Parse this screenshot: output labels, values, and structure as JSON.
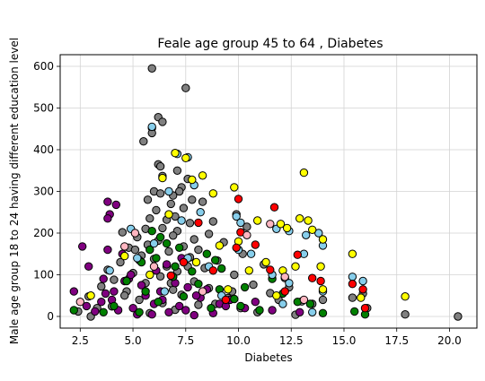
{
  "chart_data": {
    "type": "scatter",
    "title": "Feale age group 45 to 64 , Diabetes",
    "xlabel": "Diabetes",
    "ylabel": "Male age group 18 to 24 having different education level",
    "xlim": [
      1.55,
      21.3
    ],
    "ylim": [
      -28,
      628
    ],
    "xticks": [
      2.5,
      5.0,
      7.5,
      10.0,
      12.5,
      15.0,
      17.5,
      20.0
    ],
    "xtick_labels": [
      "2.5",
      "5.0",
      "7.5",
      "10.0",
      "12.5",
      "15.0",
      "17.5",
      "20.0"
    ],
    "yticks": [
      0,
      100,
      200,
      300,
      400,
      500,
      600
    ],
    "ytick_labels": [
      "0",
      "100",
      "200",
      "300",
      "400",
      "500",
      "600"
    ],
    "grid": true,
    "marker_edge_color": "#000000",
    "series": [
      {
        "color": "#808080",
        "points": [
          [
            5.9,
            595
          ],
          [
            7.5,
            548
          ],
          [
            6.2,
            478
          ],
          [
            6.4,
            467
          ],
          [
            5.9,
            452
          ],
          [
            5.9,
            440
          ],
          [
            5.5,
            420
          ],
          [
            6.2,
            365
          ],
          [
            6.3,
            360
          ],
          [
            7.1,
            350
          ],
          [
            6.4,
            337
          ],
          [
            7.6,
            330
          ],
          [
            7.3,
            310
          ],
          [
            7.2,
            300
          ],
          [
            6.0,
            300
          ],
          [
            6.3,
            295
          ],
          [
            6.9,
            290
          ],
          [
            7.8,
            280
          ],
          [
            5.7,
            280
          ],
          [
            8.3,
            275
          ],
          [
            6.8,
            270
          ],
          [
            7.4,
            260
          ],
          [
            6.1,
            255
          ],
          [
            9.9,
            245
          ],
          [
            7.0,
            240
          ],
          [
            5.8,
            235
          ],
          [
            6.6,
            232
          ],
          [
            8.8,
            228
          ],
          [
            7.7,
            224
          ],
          [
            10.4,
            215
          ],
          [
            6.4,
            212
          ],
          [
            5.6,
            210
          ],
          [
            7.1,
            205
          ],
          [
            4.5,
            202
          ],
          [
            8.6,
            198
          ],
          [
            6.9,
            194
          ],
          [
            5.2,
            190
          ],
          [
            7.9,
            185
          ],
          [
            6.2,
            182
          ],
          [
            9.3,
            178
          ],
          [
            5.7,
            172
          ],
          [
            7.4,
            168
          ],
          [
            4.8,
            165
          ],
          [
            8.1,
            160
          ],
          [
            6.7,
            156
          ],
          [
            10.2,
            150
          ],
          [
            5.4,
            146
          ],
          [
            7.7,
            142
          ],
          [
            6.0,
            138
          ],
          [
            9.0,
            134
          ],
          [
            4.4,
            130
          ],
          [
            11.2,
            125
          ],
          [
            6.6,
            120
          ],
          [
            8.4,
            116
          ],
          [
            3.8,
            112
          ],
          [
            7.1,
            108
          ],
          [
            5.0,
            104
          ],
          [
            9.8,
            100
          ],
          [
            6.3,
            96
          ],
          [
            12.2,
            92
          ],
          [
            4.1,
            88
          ],
          [
            7.9,
            84
          ],
          [
            5.6,
            80
          ],
          [
            10.7,
            76
          ],
          [
            3.5,
            72
          ],
          [
            8.6,
            68
          ],
          [
            6.9,
            64
          ],
          [
            4.7,
            60
          ],
          [
            11.5,
            56
          ],
          [
            7.3,
            52
          ],
          [
            2.9,
            48
          ],
          [
            9.5,
            44
          ],
          [
            5.3,
            40
          ],
          [
            13.0,
            36
          ],
          [
            6.4,
            32
          ],
          [
            8.1,
            28
          ],
          [
            4.0,
            24
          ],
          [
            10.1,
            20
          ],
          [
            7.0,
            16
          ],
          [
            2.4,
            12
          ],
          [
            5.8,
            8
          ],
          [
            12.7,
            4
          ],
          [
            15.4,
            45
          ],
          [
            15.9,
            55
          ],
          [
            14.0,
            40
          ],
          [
            16.1,
            20
          ],
          [
            17.9,
            5
          ],
          [
            20.4,
            0
          ],
          [
            13.5,
            30
          ],
          [
            11.9,
            40
          ],
          [
            3.3,
            20
          ],
          [
            4.6,
            50
          ],
          [
            6.8,
            80
          ],
          [
            8.9,
            30
          ],
          [
            9.7,
            60
          ],
          [
            10.9,
            10
          ],
          [
            12.4,
            70
          ],
          [
            3.0,
            0
          ],
          [
            7.6,
            120
          ],
          [
            5.1,
            160
          ]
        ]
      },
      {
        "color": "#800080",
        "points": [
          [
            3.8,
            275
          ],
          [
            4.2,
            268
          ],
          [
            3.9,
            245
          ],
          [
            3.8,
            235
          ],
          [
            2.6,
            168
          ],
          [
            3.8,
            160
          ],
          [
            4.5,
            150
          ],
          [
            2.9,
            120
          ],
          [
            5.3,
            135
          ],
          [
            6.1,
            110
          ],
          [
            4.8,
            90
          ],
          [
            6.9,
            95
          ],
          [
            7.6,
            70
          ],
          [
            4.1,
            60
          ],
          [
            2.2,
            60
          ],
          [
            5.6,
            50
          ],
          [
            8.2,
            45
          ],
          [
            6.4,
            40
          ],
          [
            3.5,
            35
          ],
          [
            9.1,
            30
          ],
          [
            7.2,
            25
          ],
          [
            5.0,
            20
          ],
          [
            4.3,
            15
          ],
          [
            6.7,
            10
          ],
          [
            8.8,
            8
          ],
          [
            5.9,
            5
          ],
          [
            7.9,
            3
          ],
          [
            3.2,
            12
          ],
          [
            10.3,
            20
          ],
          [
            11.6,
            15
          ],
          [
            12.9,
            10
          ],
          [
            9.6,
            40
          ],
          [
            6.3,
            60
          ],
          [
            7.0,
            80
          ],
          [
            8.5,
            65
          ],
          [
            5.4,
            75
          ],
          [
            4.6,
            85
          ],
          [
            3.7,
            55
          ],
          [
            6.0,
            30
          ],
          [
            7.5,
            15
          ],
          [
            8.0,
            50
          ],
          [
            9.4,
            25
          ],
          [
            10.8,
            35
          ],
          [
            5.2,
            5
          ],
          [
            4.9,
            100
          ],
          [
            6.6,
            125
          ],
          [
            7.3,
            140
          ],
          [
            2.8,
            25
          ],
          [
            3.6,
            90
          ],
          [
            4.0,
            40
          ]
        ]
      },
      {
        "color": "#008000",
        "points": [
          [
            5.9,
            205
          ],
          [
            6.3,
            190
          ],
          [
            6.6,
            175
          ],
          [
            7.2,
            165
          ],
          [
            8.5,
            150
          ],
          [
            6.1,
            140
          ],
          [
            5.4,
            130
          ],
          [
            9.2,
            115
          ],
          [
            7.8,
            108
          ],
          [
            6.9,
            95
          ],
          [
            11.6,
            90
          ],
          [
            4.7,
            85
          ],
          [
            8.1,
            78
          ],
          [
            10.3,
            70
          ],
          [
            5.6,
            60
          ],
          [
            12.1,
            55
          ],
          [
            7.4,
            48
          ],
          [
            9.8,
            42
          ],
          [
            6.2,
            35
          ],
          [
            13.4,
            30
          ],
          [
            4.1,
            25
          ],
          [
            8.7,
            20
          ],
          [
            11.0,
            15
          ],
          [
            5.3,
            10
          ],
          [
            14.0,
            8
          ],
          [
            2.2,
            15
          ],
          [
            3.6,
            10
          ],
          [
            15.5,
            12
          ],
          [
            16.0,
            5
          ],
          [
            10.1,
            25
          ],
          [
            12.8,
            35
          ],
          [
            9.1,
            65
          ],
          [
            7.0,
            120
          ],
          [
            8.9,
            135
          ],
          [
            5.8,
            160
          ]
        ]
      },
      {
        "color": "#87ceeb",
        "points": [
          [
            5.9,
            455
          ],
          [
            7.1,
            390
          ],
          [
            7.6,
            382
          ],
          [
            7.9,
            315
          ],
          [
            6.7,
            300
          ],
          [
            9.9,
            240
          ],
          [
            8.2,
            250
          ],
          [
            10.1,
            225
          ],
          [
            7.3,
            230
          ],
          [
            11.8,
            210
          ],
          [
            12.4,
            205
          ],
          [
            13.2,
            195
          ],
          [
            13.8,
            200
          ],
          [
            14.0,
            170
          ],
          [
            6.0,
            175
          ],
          [
            7.6,
            140
          ],
          [
            10.0,
            160
          ],
          [
            13.1,
            150
          ],
          [
            8.6,
            120
          ],
          [
            11.6,
            100
          ],
          [
            12.4,
            80
          ],
          [
            14.0,
            60
          ],
          [
            15.4,
            95
          ],
          [
            15.9,
            85
          ],
          [
            4.9,
            210
          ],
          [
            5.2,
            140
          ],
          [
            6.5,
            60
          ],
          [
            9.2,
            50
          ],
          [
            10.6,
            150
          ],
          [
            12.1,
            30
          ],
          [
            13.5,
            10
          ],
          [
            3.9,
            110
          ]
        ]
      },
      {
        "color": "#ffff00",
        "points": [
          [
            13.1,
            345
          ],
          [
            7.0,
            392
          ],
          [
            7.5,
            380
          ],
          [
            8.3,
            338
          ],
          [
            6.4,
            332
          ],
          [
            7.8,
            328
          ],
          [
            8.8,
            295
          ],
          [
            9.8,
            310
          ],
          [
            6.7,
            245
          ],
          [
            10.9,
            230
          ],
          [
            12.0,
            222
          ],
          [
            12.3,
            212
          ],
          [
            12.9,
            235
          ],
          [
            13.3,
            230
          ],
          [
            13.5,
            208
          ],
          [
            14.0,
            185
          ],
          [
            13.9,
            120
          ],
          [
            11.3,
            130
          ],
          [
            10.5,
            110
          ],
          [
            12.7,
            120
          ],
          [
            14.0,
            65
          ],
          [
            15.4,
            150
          ],
          [
            15.8,
            45
          ],
          [
            17.9,
            48
          ],
          [
            3.0,
            50
          ],
          [
            4.6,
            145
          ],
          [
            5.8,
            100
          ],
          [
            9.1,
            170
          ],
          [
            10.0,
            180
          ],
          [
            11.8,
            50
          ],
          [
            12.1,
            110
          ],
          [
            9.5,
            65
          ],
          [
            8.0,
            130
          ]
        ]
      },
      {
        "color": "#ff0000",
        "points": [
          [
            10.0,
            282
          ],
          [
            11.7,
            262
          ],
          [
            8.1,
            225
          ],
          [
            10.1,
            202
          ],
          [
            9.9,
            165
          ],
          [
            10.8,
            172
          ],
          [
            12.8,
            148
          ],
          [
            11.5,
            112
          ],
          [
            13.5,
            92
          ],
          [
            13.9,
            85
          ],
          [
            15.4,
            78
          ],
          [
            15.9,
            65
          ],
          [
            16.0,
            20
          ],
          [
            8.8,
            110
          ],
          [
            7.4,
            130
          ],
          [
            6.8,
            98
          ],
          [
            12.2,
            60
          ],
          [
            9.4,
            40
          ]
        ]
      },
      {
        "color": "#ffb6c1",
        "points": [
          [
            11.5,
            222
          ],
          [
            10.4,
            195
          ],
          [
            4.6,
            168
          ],
          [
            2.5,
            35
          ],
          [
            5.1,
            200
          ],
          [
            12.2,
            95
          ],
          [
            13.1,
            40
          ],
          [
            6.0,
            120
          ],
          [
            8.3,
            60
          ]
        ]
      }
    ]
  }
}
